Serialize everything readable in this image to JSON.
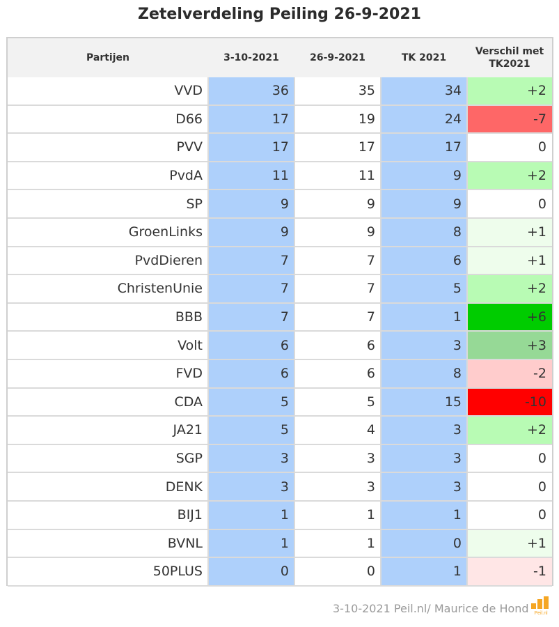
{
  "title": "Zetelverdeling Peiling 26-9-2021",
  "footer": "3-10-2021 Peil.nl/ Maurice de Hond",
  "logo_text": "Peil.nl",
  "chart_data": {
    "type": "table",
    "columns": [
      "Partijen",
      "3-10-2021",
      "26-9-2021",
      "TK 2021",
      "Verschil met TK2021"
    ],
    "rows": [
      {
        "party": "VVD",
        "p1": "36",
        "p2": "35",
        "tk": "34",
        "diff": "+2",
        "color": "#b8fbb4"
      },
      {
        "party": "D66",
        "p1": "17",
        "p2": "19",
        "tk": "24",
        "diff": "-7",
        "color": "#fe6767"
      },
      {
        "party": "PVV",
        "p1": "17",
        "p2": "17",
        "tk": "17",
        "diff": "0",
        "color": "#ffffff"
      },
      {
        "party": "PvdA",
        "p1": "11",
        "p2": "11",
        "tk": "9",
        "diff": "+2",
        "color": "#b8fbb4"
      },
      {
        "party": "SP",
        "p1": "9",
        "p2": "9",
        "tk": "9",
        "diff": "0",
        "color": "#ffffff"
      },
      {
        "party": "GroenLinks",
        "p1": "9",
        "p2": "9",
        "tk": "8",
        "diff": "+1",
        "color": "#eefdec"
      },
      {
        "party": "PvdDieren",
        "p1": "7",
        "p2": "7",
        "tk": "6",
        "diff": "+1",
        "color": "#eefdec"
      },
      {
        "party": "ChristenUnie",
        "p1": "7",
        "p2": "7",
        "tk": "5",
        "diff": "+2",
        "color": "#b8fbb4"
      },
      {
        "party": "BBB",
        "p1": "7",
        "p2": "7",
        "tk": "1",
        "diff": "+6",
        "color": "#00cc00"
      },
      {
        "party": "Volt",
        "p1": "6",
        "p2": "6",
        "tk": "3",
        "diff": "+3",
        "color": "#96d996"
      },
      {
        "party": "FVD",
        "p1": "6",
        "p2": "6",
        "tk": "8",
        "diff": "-2",
        "color": "#ffcccc"
      },
      {
        "party": "CDA",
        "p1": "5",
        "p2": "5",
        "tk": "15",
        "diff": "-10",
        "color": "#ff0000"
      },
      {
        "party": "JA21",
        "p1": "5",
        "p2": "4",
        "tk": "3",
        "diff": "+2",
        "color": "#b8fbb4"
      },
      {
        "party": "SGP",
        "p1": "3",
        "p2": "3",
        "tk": "3",
        "diff": "0",
        "color": "#ffffff"
      },
      {
        "party": "DENK",
        "p1": "3",
        "p2": "3",
        "tk": "3",
        "diff": "0",
        "color": "#ffffff"
      },
      {
        "party": "BIJ1",
        "p1": "1",
        "p2": "1",
        "tk": "1",
        "diff": "0",
        "color": "#ffffff"
      },
      {
        "party": "BVNL",
        "p1": "1",
        "p2": "1",
        "tk": "0",
        "diff": "+1",
        "color": "#eefdec"
      },
      {
        "party": "50PLUS",
        "p1": "0",
        "p2": "0",
        "tk": "1",
        "diff": "-1",
        "color": "#ffe6e6"
      }
    ]
  }
}
